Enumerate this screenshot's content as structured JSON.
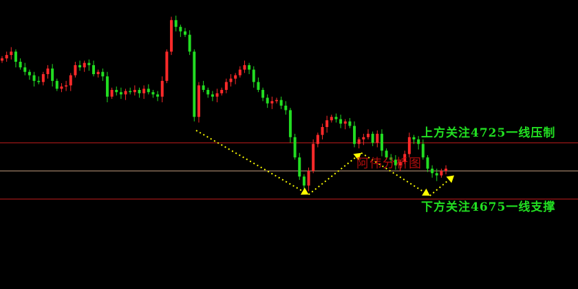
{
  "chart_data": {
    "type": "candlestick",
    "title": "",
    "colors": {
      "up": "#ff2a2a",
      "down": "#22dd22",
      "resistance": "#c81e1e",
      "support": "#c81e1e",
      "mid": "#c8a080",
      "arrow": "#ffff00",
      "label": "#22e022",
      "watermark": "#d01010",
      "background": "#000000"
    },
    "ylim": [
      4620,
      4860
    ],
    "closes": [
      4800,
      4803,
      4806,
      4797,
      4792,
      4788,
      4785,
      4780,
      4779,
      4786,
      4791,
      4780,
      4773,
      4775,
      4776,
      4785,
      4794,
      4792,
      4796,
      4794,
      4786,
      4788,
      4784,
      4766,
      4772,
      4770,
      4768,
      4771,
      4770,
      4772,
      4769,
      4773,
      4770,
      4768,
      4766,
      4780,
      4806,
      4834,
      4828,
      4824,
      4821,
      4806,
      4748,
      4776,
      4772,
      4768,
      4766,
      4769,
      4772,
      4779,
      4782,
      4785,
      4790,
      4794,
      4790,
      4779,
      4772,
      4765,
      4760,
      4762,
      4763,
      4758,
      4754,
      4730,
      4712,
      4695,
      4687,
      4700,
      4724,
      4732,
      4739,
      4745,
      4748,
      4746,
      4742,
      4744,
      4740,
      4724,
      4728,
      4730,
      4733,
      4725,
      4733,
      4718,
      4712,
      4710,
      4705,
      4708,
      4715,
      4730,
      4728,
      4724,
      4712,
      4702,
      4698,
      4696,
      4700,
      4702
    ],
    "horizontal_lines": [
      {
        "price": 4725,
        "role": "resistance"
      },
      {
        "price": 4700,
        "role": "mid"
      },
      {
        "price": 4675,
        "role": "support"
      }
    ],
    "arrow_path": [
      [
        42.4,
        4736
      ],
      [
        67,
        4679
      ],
      [
        78.5,
        4716
      ],
      [
        93.5,
        4678
      ],
      [
        98.8,
        4696
      ]
    ],
    "annotations": {
      "resistance_label": "上方关注4725一线压制",
      "support_label": "下方关注4675一线支撑",
      "watermark": "阿伟分析图"
    }
  }
}
